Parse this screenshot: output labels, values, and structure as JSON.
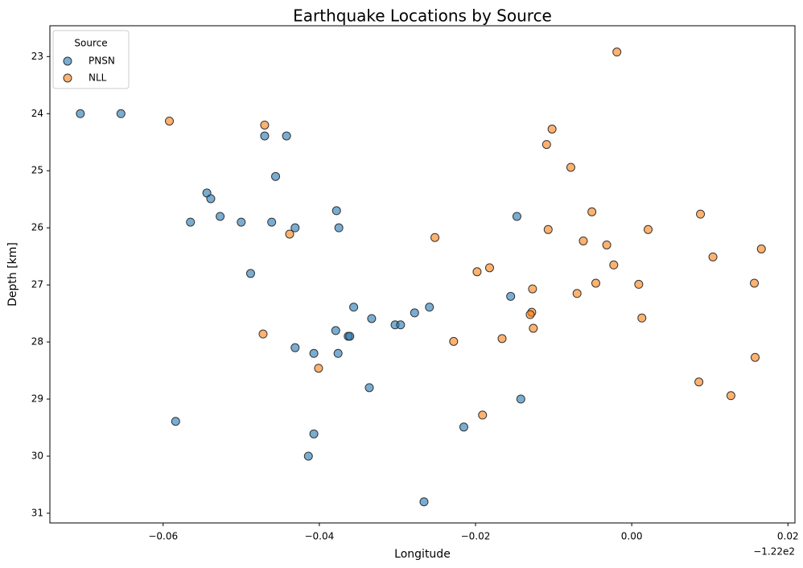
{
  "chart_data": {
    "type": "scatter",
    "title": "Earthquake Locations by Source",
    "x_label": "Longitude",
    "y_label": "Depth [km]",
    "x_offset_label": "−1.22e2",
    "legend_title": "Source",
    "legend_position": "upper left",
    "y_inverted": true,
    "xlim": [
      -0.0745,
      0.0209
    ],
    "ylim": [
      22.46,
      31.17
    ],
    "xticks": [
      {
        "value": -0.06,
        "label": "−0.06"
      },
      {
        "value": -0.04,
        "label": "−0.04"
      },
      {
        "value": -0.02,
        "label": "−0.02"
      },
      {
        "value": 0,
        "label": "0.00"
      },
      {
        "value": 0.02,
        "label": "0.02"
      }
    ],
    "yticks": [
      23,
      24,
      25,
      26,
      27,
      28,
      29,
      30,
      31
    ],
    "series": [
      {
        "name": "PNSN",
        "color": "#1f77b4",
        "x": [
          -0.0706,
          -0.0654,
          -0.047,
          -0.0442,
          -0.0456,
          -0.0544,
          -0.0539,
          -0.0565,
          -0.0527,
          -0.05,
          -0.0461,
          -0.0431,
          -0.0378,
          -0.0375,
          -0.0147,
          -0.0488,
          -0.0356,
          -0.0333,
          -0.0379,
          -0.0363,
          -0.0361,
          -0.0303,
          -0.0296,
          -0.0278,
          -0.0259,
          -0.0155,
          -0.0431,
          -0.0407,
          -0.0376,
          -0.0336,
          -0.0142,
          -0.0584,
          -0.0407,
          -0.0215,
          -0.0414,
          -0.0266
        ],
        "values": [
          24.0,
          24.0,
          24.39,
          24.39,
          25.1,
          25.39,
          25.49,
          25.9,
          25.8,
          25.9,
          25.9,
          26.0,
          25.7,
          26.0,
          25.8,
          26.8,
          27.39,
          27.59,
          27.8,
          27.9,
          27.9,
          27.7,
          27.7,
          27.49,
          27.39,
          27.2,
          28.1,
          28.2,
          28.2,
          28.8,
          29.0,
          29.39,
          29.61,
          29.49,
          30.0,
          30.8
        ]
      },
      {
        "name": "NLL",
        "color": "#ff7f0e",
        "x": [
          -0.0019,
          -0.0592,
          -0.047,
          -0.0102,
          -0.0109,
          -0.0078,
          -0.0051,
          0.0088,
          -0.0438,
          -0.0252,
          -0.0107,
          -0.0062,
          -0.0032,
          0.0021,
          0.0166,
          0.0104,
          -0.0023,
          -0.0198,
          -0.0182,
          -0.0127,
          -0.007,
          -0.0046,
          0.0009,
          0.0157,
          -0.0128,
          -0.013,
          0.0013,
          -0.0472,
          -0.0126,
          -0.0228,
          -0.0166,
          -0.0401,
          0.0158,
          0.0086,
          0.0127,
          -0.0191
        ],
        "values": [
          22.92,
          24.13,
          24.2,
          24.27,
          24.54,
          24.94,
          25.72,
          25.76,
          26.11,
          26.17,
          26.03,
          26.23,
          26.3,
          26.03,
          26.37,
          26.51,
          26.65,
          26.77,
          26.7,
          27.07,
          27.15,
          26.97,
          26.99,
          26.97,
          27.48,
          27.52,
          27.58,
          27.86,
          27.76,
          27.99,
          27.94,
          28.46,
          28.27,
          28.7,
          28.94,
          29.28
        ]
      }
    ]
  }
}
